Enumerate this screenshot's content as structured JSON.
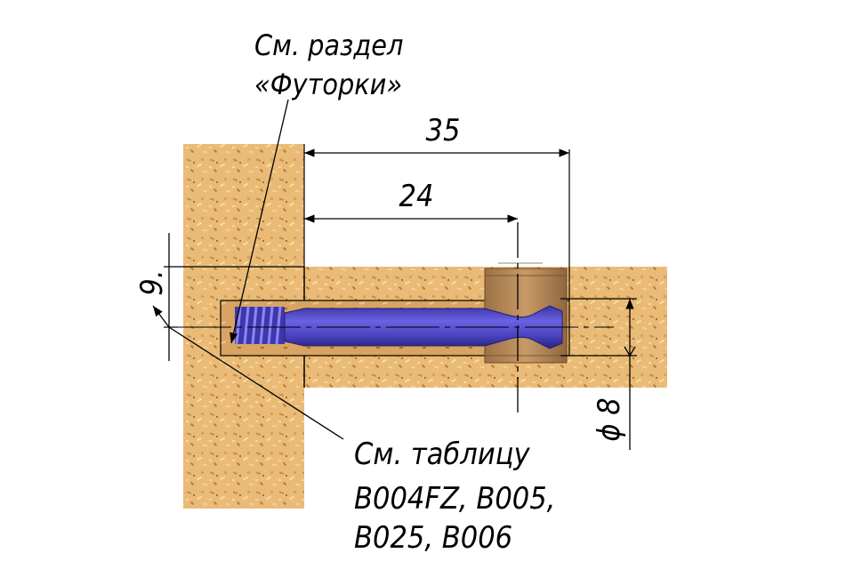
{
  "labels": {
    "futorki_line1": "См. раздел",
    "futorki_line2": "«Футорки»",
    "table_line1": "См. таблицу",
    "table_line2": "B004FZ, B005,",
    "table_line3": "B025, B006"
  },
  "dimensions": {
    "length_outer": "35",
    "length_inner": "24",
    "offset": "9.",
    "diameter": "ϕ 8"
  },
  "colors": {
    "board": "#e7b56e",
    "board_dark": "#c48845",
    "bolt": "#4f47c4",
    "bolt_dark": "#2c2690",
    "cam": "#b58858"
  }
}
